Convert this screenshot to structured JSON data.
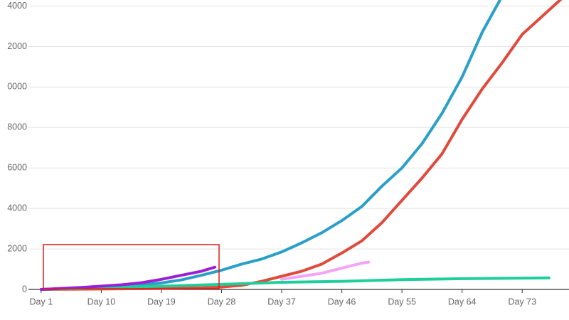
{
  "chart_data": {
    "type": "line",
    "xlim": [
      -0.9,
      80
    ],
    "xticks": [
      {
        "value": 1,
        "label": "Day 1"
      },
      {
        "value": 10,
        "label": "Day 10"
      },
      {
        "value": 19,
        "label": "Day 19"
      },
      {
        "value": 28,
        "label": "Day 28"
      },
      {
        "value": 37,
        "label": "Day 37"
      },
      {
        "value": 46,
        "label": "Day 46"
      },
      {
        "value": 55,
        "label": "Day 55"
      },
      {
        "value": 64,
        "label": "Day 64"
      },
      {
        "value": 73,
        "label": "Day 73"
      }
    ],
    "ylim": [
      0,
      14300
    ],
    "yticks": [
      0,
      2000,
      4000,
      6000,
      8000,
      {
        "value": 10000,
        "label": "0000"
      },
      {
        "value": 12000,
        "label": "2000"
      },
      {
        "value": 14000,
        "label": "4000"
      }
    ],
    "grid": true,
    "series": [
      {
        "color": "#2a9fc9",
        "x": [
          1,
          4,
          7,
          10,
          13,
          16,
          19,
          22,
          25,
          28,
          31,
          34,
          37,
          40,
          43,
          46,
          49,
          52,
          55,
          58,
          61,
          64,
          67,
          70
        ],
        "values": [
          0,
          30,
          70,
          110,
          160,
          230,
          320,
          470,
          700,
          950,
          1250,
          1500,
          1850,
          2300,
          2800,
          3400,
          4100,
          5100,
          6000,
          7200,
          8700,
          10500,
          12700,
          14500
        ]
      },
      {
        "color": "#e04a3b",
        "x": [
          1,
          10,
          19,
          25,
          28,
          31,
          34,
          37,
          40,
          43,
          46,
          49,
          52,
          55,
          58,
          61,
          64,
          67,
          70,
          73,
          76,
          79
        ],
        "values": [
          0,
          20,
          50,
          80,
          120,
          200,
          400,
          650,
          900,
          1250,
          1800,
          2400,
          3300,
          4400,
          5500,
          6700,
          8400,
          9900,
          11200,
          12600,
          13500,
          14400
        ]
      },
      {
        "color": "#1fcf9b",
        "x": [
          1,
          10,
          19,
          28,
          37,
          46,
          55,
          64,
          73,
          77
        ],
        "values": [
          0,
          80,
          160,
          250,
          350,
          400,
          480,
          530,
          560,
          570
        ]
      },
      {
        "color": "#f4a3f7",
        "x": [
          37,
          40,
          43,
          46,
          49,
          50
        ],
        "values": [
          500,
          650,
          800,
          1050,
          1300,
          1350
        ]
      },
      {
        "color": "#9b1fd6",
        "x": [
          1,
          4,
          7,
          10,
          13,
          16,
          19,
          22,
          25,
          27
        ],
        "values": [
          0,
          50,
          100,
          160,
          230,
          330,
          500,
          700,
          900,
          1100
        ]
      }
    ]
  }
}
